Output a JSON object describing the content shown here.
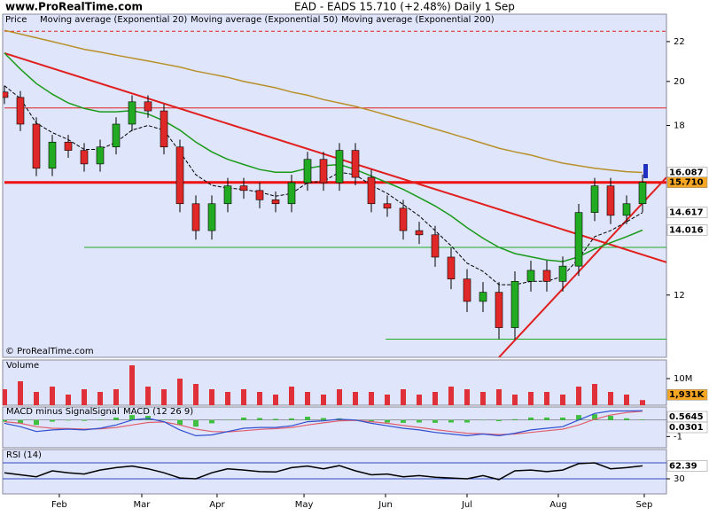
{
  "header": {
    "site": "www.ProRealTime.com",
    "copyright": "© ProRealTime.com"
  },
  "chart_data": [
    {
      "type": "candlestick",
      "title": "EAD - EADS   15.710 (+2.48%)   Daily   1 Sep",
      "legend_label": "Price",
      "xlim": [
        0,
        41.5
      ],
      "log_scale": true,
      "ylim": [
        10.34,
        23.49
      ],
      "yticks": [
        12,
        18,
        20,
        22
      ],
      "up_color": "#22aa22",
      "down_color": "#e02828",
      "open": [
        19.5,
        19.25,
        18.06,
        16.25,
        17.3,
        16.96,
        16.42,
        17.1,
        18.06,
        19.05,
        18.64,
        17.1,
        14.93,
        14.0,
        14.93,
        15.58,
        15.41,
        15.07,
        14.93,
        15.7,
        16.6,
        15.7,
        16.96,
        15.9,
        14.93,
        14.77,
        14.0,
        13.86,
        13.14,
        12.47,
        11.82,
        12.08,
        11.1,
        12.4,
        12.73,
        12.4,
        12.86,
        14.62,
        15.58,
        14.52,
        14.93
      ],
      "high": [
        19.8,
        19.55,
        18.36,
        17.6,
        17.6,
        17.26,
        17.4,
        18.36,
        19.35,
        19.35,
        18.94,
        17.4,
        15.23,
        15.23,
        15.88,
        15.88,
        15.71,
        15.37,
        16.0,
        16.9,
        16.9,
        17.26,
        17.26,
        16.2,
        15.23,
        15.07,
        14.3,
        14.16,
        13.44,
        12.77,
        12.38,
        12.38,
        12.7,
        13.03,
        13.03,
        13.16,
        14.92,
        15.88,
        15.88,
        15.23,
        16.01
      ],
      "low": [
        18.95,
        17.76,
        15.95,
        15.95,
        16.66,
        16.12,
        16.12,
        16.8,
        17.76,
        18.34,
        16.8,
        14.63,
        13.7,
        13.7,
        14.63,
        15.11,
        14.77,
        14.63,
        14.63,
        15.4,
        15.4,
        15.4,
        15.6,
        14.63,
        14.47,
        13.7,
        13.56,
        12.84,
        12.17,
        11.52,
        11.52,
        10.8,
        10.8,
        12.1,
        12.1,
        12.1,
        12.56,
        14.32,
        14.22,
        14.22,
        14.63
      ],
      "close": [
        19.25,
        18.06,
        16.25,
        17.3,
        16.96,
        16.42,
        17.1,
        18.06,
        19.05,
        18.64,
        17.1,
        14.93,
        14.0,
        14.93,
        15.58,
        15.41,
        15.07,
        14.93,
        15.7,
        16.6,
        15.7,
        16.96,
        15.9,
        14.93,
        14.77,
        14.0,
        13.86,
        13.14,
        12.47,
        11.82,
        12.08,
        11.1,
        12.4,
        12.73,
        12.4,
        12.86,
        14.62,
        15.58,
        14.52,
        14.93,
        15.71
      ],
      "last_value_label": "15.710",
      "series": [
        {
          "name": "Moving average (Exponential 20)",
          "color": "#000000",
          "dashed": true,
          "values": [
            19.8,
            19.2,
            18.1,
            17.7,
            17.4,
            17.0,
            17.0,
            17.3,
            17.8,
            18.0,
            17.8,
            16.9,
            16.0,
            15.6,
            15.5,
            15.45,
            15.35,
            15.2,
            15.3,
            15.7,
            15.75,
            16.1,
            16.0,
            15.6,
            15.3,
            14.9,
            14.5,
            14.0,
            13.5,
            12.95,
            12.7,
            12.3,
            12.3,
            12.4,
            12.4,
            12.55,
            13.1,
            13.8,
            14.0,
            14.3,
            14.617
          ]
        },
        {
          "name": "Moving average (Exponential 50)",
          "color": "#1a9a1a",
          "dashed": false,
          "values": [
            21.4,
            20.6,
            19.9,
            19.4,
            19.0,
            18.75,
            18.6,
            18.6,
            18.65,
            18.5,
            18.2,
            17.8,
            17.3,
            16.9,
            16.6,
            16.4,
            16.2,
            16.1,
            16.1,
            16.25,
            16.35,
            16.4,
            16.2,
            15.95,
            15.7,
            15.45,
            15.15,
            14.85,
            14.5,
            14.1,
            13.75,
            13.45,
            13.25,
            13.15,
            13.05,
            13.0,
            13.15,
            13.4,
            13.6,
            13.8,
            14.016
          ]
        },
        {
          "name": "Moving average (Exponential 200)",
          "color": "#b8902a",
          "dashed": false,
          "values": [
            22.6,
            22.4,
            22.2,
            22.0,
            21.8,
            21.6,
            21.45,
            21.3,
            21.15,
            21.0,
            20.85,
            20.7,
            20.5,
            20.35,
            20.2,
            20.0,
            19.85,
            19.7,
            19.5,
            19.35,
            19.15,
            19.0,
            18.84,
            18.65,
            18.45,
            18.25,
            18.05,
            17.85,
            17.65,
            17.45,
            17.25,
            17.05,
            16.9,
            16.77,
            16.6,
            16.45,
            16.35,
            16.25,
            16.18,
            16.12,
            16.087
          ]
        }
      ],
      "hlines": [
        {
          "value": 22.55,
          "color": "#e02020",
          "width": 1,
          "dashed": true,
          "from": 0
        },
        {
          "value": 18.77,
          "color": "#e02020",
          "width": 1,
          "dashed": false,
          "from": 0
        },
        {
          "value": 15.71,
          "color": "#ee1111",
          "width": 3,
          "dashed": false,
          "from": 0
        },
        {
          "value": 13.45,
          "color": "#22aa22",
          "width": 1,
          "dashed": false,
          "from": 5
        },
        {
          "value": 10.8,
          "color": "#22aa22",
          "width": 1,
          "dashed": false,
          "from": 23.9
        }
      ],
      "trendlines": [
        {
          "x": [
            0,
            41.5
          ],
          "y": [
            21.4,
            12.98
          ],
          "color": "#e02020"
        },
        {
          "x": [
            31,
            41.5
          ],
          "y": [
            10.34,
            15.9
          ],
          "color": "#e02020"
        }
      ]
    },
    {
      "type": "bar",
      "title": "Volume",
      "color": "#e0303a",
      "ylim": [
        0,
        17
      ],
      "yticks": [
        {
          "value": 10,
          "label": "10M"
        }
      ],
      "values": [
        6,
        9,
        5,
        7,
        4,
        6,
        5,
        6,
        15,
        7,
        6,
        10,
        8,
        6,
        5,
        6,
        5,
        4,
        7,
        5,
        4,
        6,
        5,
        5,
        4,
        6,
        4,
        5,
        7,
        6,
        5,
        6,
        4,
        5,
        5,
        4,
        7,
        8,
        5,
        4,
        1.931
      ],
      "last_value_label": "1,931K"
    },
    {
      "type": "macd",
      "ylim": [
        -1.68,
        0.79
      ],
      "yticks": [
        -1
      ],
      "series": [
        {
          "name": "MACD minus Signal",
          "color": "#40c040",
          "style": "histogram",
          "values": [
            -0.1,
            -0.2,
            -0.3,
            -0.1,
            -0.03,
            -0.05,
            0.03,
            0.15,
            0.3,
            0.25,
            0.02,
            -0.3,
            -0.4,
            -0.2,
            0.02,
            0.15,
            0.12,
            0.07,
            0.1,
            0.2,
            0.12,
            0.1,
            0.02,
            -0.1,
            -0.15,
            -0.17,
            -0.15,
            -0.17,
            -0.15,
            -0.15,
            -0.02,
            -0.07,
            0.05,
            0.15,
            0.15,
            0.15,
            0.3,
            0.35,
            0.25,
            0.1,
            0.0301
          ]
        },
        {
          "name": "Signal",
          "color": "#e06070",
          "style": "line",
          "values": [
            -0.1,
            -0.2,
            -0.4,
            -0.5,
            -0.52,
            -0.55,
            -0.53,
            -0.45,
            -0.3,
            -0.15,
            -0.12,
            -0.3,
            -0.55,
            -0.7,
            -0.72,
            -0.65,
            -0.57,
            -0.52,
            -0.45,
            -0.3,
            -0.17,
            -0.05,
            -0.02,
            -0.1,
            -0.2,
            -0.33,
            -0.45,
            -0.58,
            -0.7,
            -0.8,
            -0.83,
            -0.88,
            -0.85,
            -0.75,
            -0.65,
            -0.55,
            -0.3,
            0.05,
            0.3,
            0.45,
            0.53
          ]
        },
        {
          "name": "MACD (12 26 9)",
          "color": "#3050d0",
          "style": "line",
          "values": [
            -0.2,
            -0.4,
            -0.7,
            -0.6,
            -0.55,
            -0.6,
            -0.5,
            -0.3,
            0.0,
            0.1,
            -0.1,
            -0.6,
            -0.95,
            -0.9,
            -0.7,
            -0.5,
            -0.45,
            -0.45,
            -0.35,
            -0.1,
            -0.05,
            0.05,
            0.0,
            -0.2,
            -0.35,
            -0.5,
            -0.6,
            -0.75,
            -0.85,
            -0.95,
            -0.85,
            -0.95,
            -0.8,
            -0.6,
            -0.5,
            -0.4,
            0.0,
            0.4,
            0.55,
            0.55,
            0.5645
          ]
        }
      ]
    },
    {
      "type": "line",
      "title": "RSI (14)",
      "color": "#000000",
      "ylim": [
        -7.8,
        103.3
      ],
      "yticks": [
        30
      ],
      "levels": [
        70,
        30
      ],
      "level_color": "#3050c0",
      "values": [
        45,
        40,
        35,
        50,
        45,
        42,
        52,
        58,
        62,
        55,
        45,
        32,
        30,
        45,
        55,
        52,
        48,
        47,
        58,
        62,
        55,
        63,
        50,
        40,
        42,
        35,
        38,
        34,
        32,
        30,
        38,
        28,
        50,
        52,
        48,
        52,
        68,
        70,
        55,
        58,
        62.39
      ],
      "xticks": [
        {
          "value": 3.44,
          "label": "Feb"
        },
        {
          "value": 8.61,
          "label": "Mar"
        },
        {
          "value": 13.33,
          "label": "Apr"
        },
        {
          "value": 18.78,
          "label": "May"
        },
        {
          "value": 23.89,
          "label": "Jun"
        },
        {
          "value": 29,
          "label": "Jul"
        },
        {
          "value": 34.72,
          "label": "Aug"
        },
        {
          "value": 40.11,
          "label": "Sep"
        }
      ]
    }
  ]
}
